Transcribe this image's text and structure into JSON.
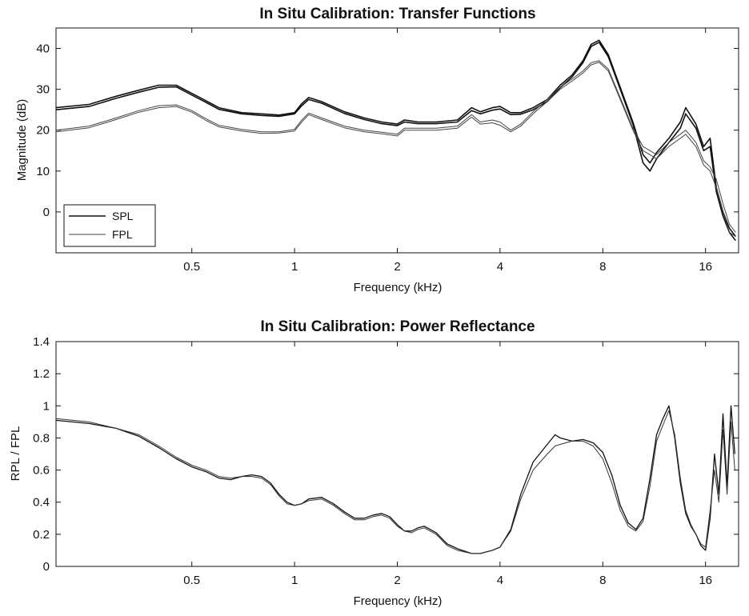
{
  "chart_data": [
    {
      "type": "line",
      "title": "In Situ Calibration: Transfer Functions",
      "xlabel": "Frequency (kHz)",
      "ylabel": "Magnitude (dB)",
      "xscale": "log",
      "xlim": [
        0.2,
        20
      ],
      "ylim": [
        -10,
        45
      ],
      "xticks": [
        0.5,
        1,
        2,
        4,
        8,
        16
      ],
      "yticks": [
        0,
        10,
        20,
        30,
        40
      ],
      "grid": false,
      "legend": {
        "placement": "bottom-left",
        "entries": [
          "SPL",
          "FPL"
        ]
      },
      "series": [
        {
          "name": "SPL",
          "color": "#111111",
          "stroke_width": 1.6,
          "x": [
            0.2,
            0.25,
            0.3,
            0.35,
            0.4,
            0.45,
            0.5,
            0.55,
            0.6,
            0.7,
            0.8,
            0.9,
            1.0,
            1.05,
            1.1,
            1.2,
            1.4,
            1.6,
            1.8,
            2.0,
            2.1,
            2.3,
            2.6,
            3.0,
            3.3,
            3.5,
            3.8,
            4.0,
            4.3,
            4.6,
            5.0,
            5.5,
            6.0,
            6.5,
            7.0,
            7.4,
            7.8,
            8.3,
            9.0,
            9.8,
            10.5,
            11.0,
            11.5,
            12.5,
            13.5,
            14.0,
            15.0,
            15.8,
            16.5,
            17.2,
            18.0,
            18.8,
            19.6
          ],
          "y": [
            25.5,
            26.3,
            28.3,
            29.8,
            31.0,
            31.0,
            29.0,
            27.2,
            25.5,
            24.3,
            24.0,
            23.7,
            24.3,
            26.5,
            28.0,
            27.0,
            24.5,
            23.0,
            22.0,
            21.5,
            22.5,
            22.0,
            22.0,
            22.5,
            25.5,
            24.5,
            25.5,
            25.8,
            24.3,
            24.3,
            25.5,
            27.5,
            31.0,
            33.5,
            37.0,
            41.0,
            42.0,
            38.5,
            30.5,
            22.0,
            14.0,
            12.0,
            14.5,
            18.0,
            22.0,
            25.5,
            21.5,
            16.0,
            18.0,
            6.0,
            0.0,
            -4.0,
            -6.0
          ]
        },
        {
          "name": "SPL",
          "color": "#111111",
          "stroke_width": 1.6,
          "x": [
            0.2,
            0.25,
            0.3,
            0.35,
            0.4,
            0.45,
            0.5,
            0.55,
            0.6,
            0.7,
            0.8,
            0.9,
            1.0,
            1.05,
            1.1,
            1.2,
            1.4,
            1.6,
            1.8,
            2.0,
            2.1,
            2.3,
            2.6,
            3.0,
            3.3,
            3.5,
            3.8,
            4.0,
            4.3,
            4.6,
            5.0,
            5.5,
            6.0,
            6.5,
            7.0,
            7.4,
            7.8,
            8.3,
            9.0,
            9.8,
            10.5,
            11.0,
            11.5,
            12.5,
            13.5,
            14.0,
            15.0,
            15.8,
            16.5,
            17.2,
            18.0,
            18.8,
            19.6
          ],
          "y": [
            25.0,
            25.8,
            27.8,
            29.3,
            30.5,
            30.6,
            28.6,
            26.8,
            25.1,
            24.0,
            23.6,
            23.4,
            24.0,
            26.0,
            27.5,
            26.6,
            24.1,
            22.6,
            21.6,
            21.1,
            22.0,
            21.6,
            21.6,
            22.0,
            24.8,
            24.0,
            24.9,
            25.2,
            23.8,
            23.9,
            25.0,
            27.0,
            30.4,
            33.0,
            36.5,
            40.5,
            41.5,
            38.0,
            30.0,
            21.5,
            12.0,
            10.0,
            13.0,
            17.0,
            20.5,
            24.0,
            20.5,
            15.0,
            16.0,
            5.0,
            -1.0,
            -5.0,
            -7.0
          ]
        },
        {
          "name": "FPL",
          "color": "#444444",
          "stroke_width": 1.0,
          "x": [
            0.2,
            0.25,
            0.3,
            0.35,
            0.4,
            0.45,
            0.5,
            0.55,
            0.6,
            0.7,
            0.8,
            0.9,
            1.0,
            1.05,
            1.1,
            1.2,
            1.4,
            1.6,
            1.8,
            2.0,
            2.1,
            2.3,
            2.6,
            3.0,
            3.3,
            3.5,
            3.8,
            4.0,
            4.3,
            4.6,
            5.0,
            5.5,
            6.0,
            6.5,
            7.0,
            7.4,
            7.8,
            8.3,
            9.0,
            9.8,
            10.5,
            11.0,
            11.5,
            12.5,
            13.5,
            14.0,
            15.0,
            15.8,
            16.5,
            17.2,
            18.0,
            18.8,
            19.6
          ],
          "y": [
            20.0,
            21.0,
            23.0,
            24.8,
            26.0,
            26.2,
            24.8,
            22.8,
            21.2,
            20.2,
            19.6,
            19.6,
            20.2,
            22.5,
            24.2,
            23.0,
            21.0,
            20.0,
            19.5,
            19.0,
            20.5,
            20.5,
            20.5,
            21.0,
            23.8,
            22.0,
            22.5,
            22.0,
            20.0,
            21.5,
            24.5,
            27.5,
            30.5,
            32.5,
            34.5,
            36.5,
            37.0,
            35.0,
            28.0,
            20.5,
            16.0,
            15.0,
            14.0,
            17.0,
            19.0,
            20.0,
            17.0,
            12.5,
            11.0,
            8.0,
            2.0,
            -3.0,
            -5.0
          ]
        },
        {
          "name": "FPL",
          "color": "#444444",
          "stroke_width": 1.0,
          "x": [
            0.2,
            0.25,
            0.3,
            0.35,
            0.4,
            0.45,
            0.5,
            0.55,
            0.6,
            0.7,
            0.8,
            0.9,
            1.0,
            1.05,
            1.1,
            1.2,
            1.4,
            1.6,
            1.8,
            2.0,
            2.1,
            2.3,
            2.6,
            3.0,
            3.3,
            3.5,
            3.8,
            4.0,
            4.3,
            4.6,
            5.0,
            5.5,
            6.0,
            6.5,
            7.0,
            7.4,
            7.8,
            8.3,
            9.0,
            9.8,
            10.5,
            11.0,
            11.5,
            12.5,
            13.5,
            14.0,
            15.0,
            15.8,
            16.5,
            17.2,
            18.0,
            18.8,
            19.6
          ],
          "y": [
            19.6,
            20.6,
            22.6,
            24.4,
            25.5,
            25.8,
            24.4,
            22.4,
            20.8,
            19.8,
            19.2,
            19.3,
            19.8,
            22.0,
            23.8,
            22.6,
            20.6,
            19.6,
            19.1,
            18.6,
            20.0,
            20.0,
            20.0,
            20.5,
            23.2,
            21.5,
            21.8,
            21.2,
            19.6,
            21.0,
            24.0,
            27.0,
            30.0,
            32.0,
            34.0,
            36.0,
            36.6,
            34.5,
            27.5,
            20.0,
            15.0,
            14.0,
            13.0,
            16.0,
            18.0,
            19.0,
            16.0,
            11.5,
            10.0,
            6.0,
            0.0,
            -5.0,
            -6.0
          ]
        }
      ]
    },
    {
      "type": "line",
      "title": "In Situ Calibration: Power Reflectance",
      "xlabel": "Frequency (kHz)",
      "ylabel": "RPL / FPL",
      "xscale": "log",
      "xlim": [
        0.2,
        20
      ],
      "ylim": [
        0,
        1.4
      ],
      "xticks": [
        0.5,
        1,
        2,
        4,
        8,
        16
      ],
      "yticks": [
        0,
        0.2,
        0.4,
        0.6,
        0.8,
        1,
        1.2,
        1.4
      ],
      "grid": false,
      "series": [
        {
          "color": "#111111",
          "stroke_width": 1.3,
          "x": [
            0.2,
            0.25,
            0.3,
            0.35,
            0.4,
            0.45,
            0.5,
            0.55,
            0.6,
            0.65,
            0.7,
            0.75,
            0.8,
            0.85,
            0.9,
            0.95,
            1.0,
            1.05,
            1.1,
            1.2,
            1.3,
            1.4,
            1.5,
            1.6,
            1.7,
            1.8,
            1.9,
            2.0,
            2.1,
            2.2,
            2.3,
            2.4,
            2.6,
            2.8,
            3.0,
            3.3,
            3.5,
            3.8,
            4.0,
            4.3,
            4.6,
            5.0,
            5.5,
            5.8,
            6.0,
            6.5,
            7.0,
            7.5,
            8.0,
            8.5,
            9.0,
            9.5,
            10.0,
            10.5,
            11.0,
            11.5,
            12.0,
            12.5,
            13.0,
            13.5,
            14.0,
            14.5,
            15.0,
            15.5,
            16.0,
            16.5,
            17.0,
            17.5,
            18.0,
            18.5,
            19.0,
            19.5
          ],
          "y": [
            0.91,
            0.89,
            0.86,
            0.81,
            0.74,
            0.67,
            0.62,
            0.59,
            0.55,
            0.54,
            0.56,
            0.57,
            0.56,
            0.52,
            0.45,
            0.4,
            0.38,
            0.39,
            0.42,
            0.43,
            0.39,
            0.34,
            0.3,
            0.3,
            0.32,
            0.33,
            0.31,
            0.26,
            0.22,
            0.22,
            0.24,
            0.25,
            0.21,
            0.14,
            0.11,
            0.08,
            0.08,
            0.1,
            0.12,
            0.23,
            0.45,
            0.65,
            0.76,
            0.82,
            0.8,
            0.78,
            0.79,
            0.77,
            0.71,
            0.57,
            0.38,
            0.27,
            0.23,
            0.3,
            0.55,
            0.82,
            0.92,
            1.0,
            0.8,
            0.52,
            0.33,
            0.25,
            0.2,
            0.13,
            0.1,
            0.3,
            0.7,
            0.45,
            0.95,
            0.5,
            1.0,
            0.7
          ]
        },
        {
          "color": "#333333",
          "stroke_width": 1.0,
          "x": [
            0.2,
            0.25,
            0.3,
            0.35,
            0.4,
            0.45,
            0.5,
            0.55,
            0.6,
            0.65,
            0.7,
            0.75,
            0.8,
            0.85,
            0.9,
            0.95,
            1.0,
            1.05,
            1.1,
            1.2,
            1.3,
            1.4,
            1.5,
            1.6,
            1.7,
            1.8,
            1.9,
            2.0,
            2.1,
            2.2,
            2.3,
            2.4,
            2.6,
            2.8,
            3.0,
            3.3,
            3.5,
            3.8,
            4.0,
            4.3,
            4.6,
            5.0,
            5.5,
            5.8,
            6.0,
            6.5,
            7.0,
            7.5,
            8.0,
            8.5,
            9.0,
            9.5,
            10.0,
            10.5,
            11.0,
            11.5,
            12.0,
            12.5,
            13.0,
            13.5,
            14.0,
            14.5,
            15.0,
            15.5,
            16.0,
            16.5,
            17.0,
            17.5,
            18.0,
            18.5,
            19.0,
            19.5
          ],
          "y": [
            0.92,
            0.9,
            0.86,
            0.82,
            0.75,
            0.68,
            0.63,
            0.6,
            0.56,
            0.55,
            0.56,
            0.56,
            0.55,
            0.51,
            0.44,
            0.39,
            0.38,
            0.39,
            0.41,
            0.42,
            0.38,
            0.33,
            0.29,
            0.29,
            0.31,
            0.32,
            0.3,
            0.25,
            0.22,
            0.21,
            0.23,
            0.24,
            0.2,
            0.13,
            0.1,
            0.08,
            0.08,
            0.1,
            0.12,
            0.22,
            0.42,
            0.6,
            0.7,
            0.75,
            0.76,
            0.78,
            0.78,
            0.75,
            0.67,
            0.52,
            0.35,
            0.25,
            0.22,
            0.28,
            0.5,
            0.78,
            0.88,
            0.97,
            0.82,
            0.55,
            0.35,
            0.26,
            0.2,
            0.14,
            0.12,
            0.35,
            0.6,
            0.4,
            0.85,
            0.45,
            0.9,
            0.6
          ]
        }
      ]
    }
  ]
}
